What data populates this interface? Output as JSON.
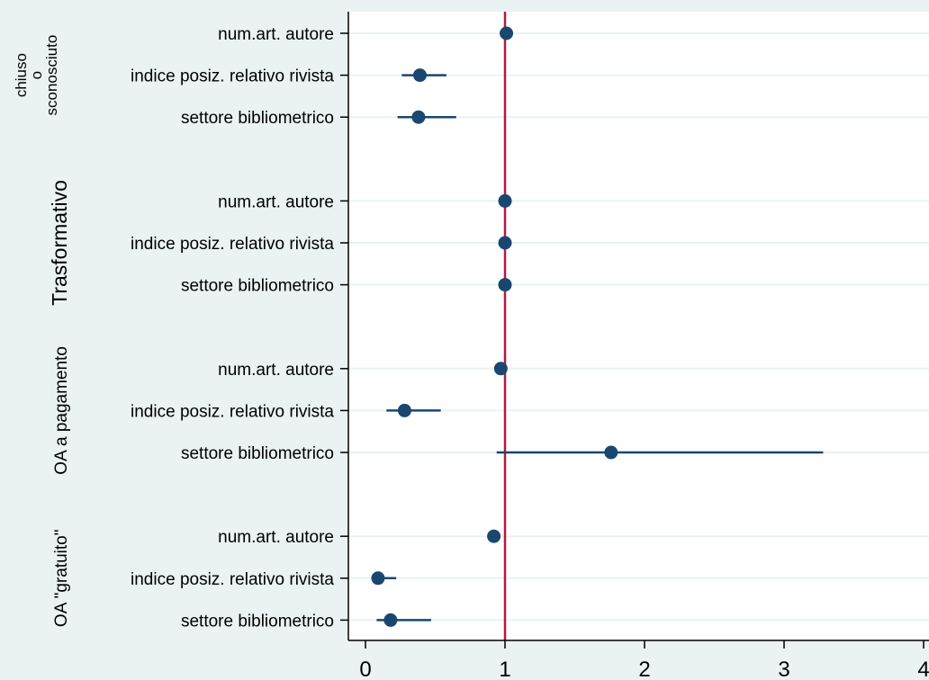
{
  "chart_data": {
    "type": "scatter",
    "subtype": "coefficient-plot",
    "title": "",
    "xlabel": "",
    "ylabel": "",
    "xlim": [
      0,
      4
    ],
    "xticks": [
      0,
      1,
      2,
      3,
      4
    ],
    "reference_line": 1,
    "grid": true,
    "colors": {
      "background": "#eaf2f3",
      "plot_area": "#ffffff",
      "gridline": "#eaf2f3",
      "marker": "#1a476f",
      "reference_line": "#b11c3d"
    },
    "groups": [
      {
        "label_lines": [
          "chiuso",
          "o",
          "sconosciuto"
        ],
        "items": [
          {
            "label": "num.art. autore",
            "value": 1.01,
            "ci": [
              1.01,
              1.01
            ]
          },
          {
            "label": "indice posiz. relativo rivista",
            "value": 0.39,
            "ci": [
              0.26,
              0.58
            ]
          },
          {
            "label": "settore bibliometrico",
            "value": 0.38,
            "ci": [
              0.23,
              0.65
            ]
          }
        ]
      },
      {
        "label_lines": [
          "Trasformativo"
        ],
        "items": [
          {
            "label": "num.art. autore",
            "value": 1.0,
            "ci": [
              1.0,
              1.0
            ]
          },
          {
            "label": "indice posiz. relativo rivista",
            "value": 1.0,
            "ci": [
              1.0,
              1.0
            ]
          },
          {
            "label": "settore bibliometrico",
            "value": 1.0,
            "ci": [
              1.0,
              1.0
            ]
          }
        ]
      },
      {
        "label_lines": [
          "OA a pagamento"
        ],
        "items": [
          {
            "label": "num.art. autore",
            "value": 0.97,
            "ci": [
              0.97,
              0.97
            ]
          },
          {
            "label": "indice posiz. relativo rivista",
            "value": 0.28,
            "ci": [
              0.15,
              0.54
            ]
          },
          {
            "label": "settore bibliometrico",
            "value": 1.76,
            "ci": [
              0.94,
              3.28
            ]
          }
        ]
      },
      {
        "label_lines": [
          "OA \"gratuito\""
        ],
        "items": [
          {
            "label": "num.art. autore",
            "value": 0.92,
            "ci": [
              0.88,
              0.96
            ]
          },
          {
            "label": "indice posiz. relativo rivista",
            "value": 0.09,
            "ci": [
              0.05,
              0.22
            ]
          },
          {
            "label": "settore bibliometrico",
            "value": 0.18,
            "ci": [
              0.08,
              0.47
            ]
          }
        ]
      }
    ]
  }
}
